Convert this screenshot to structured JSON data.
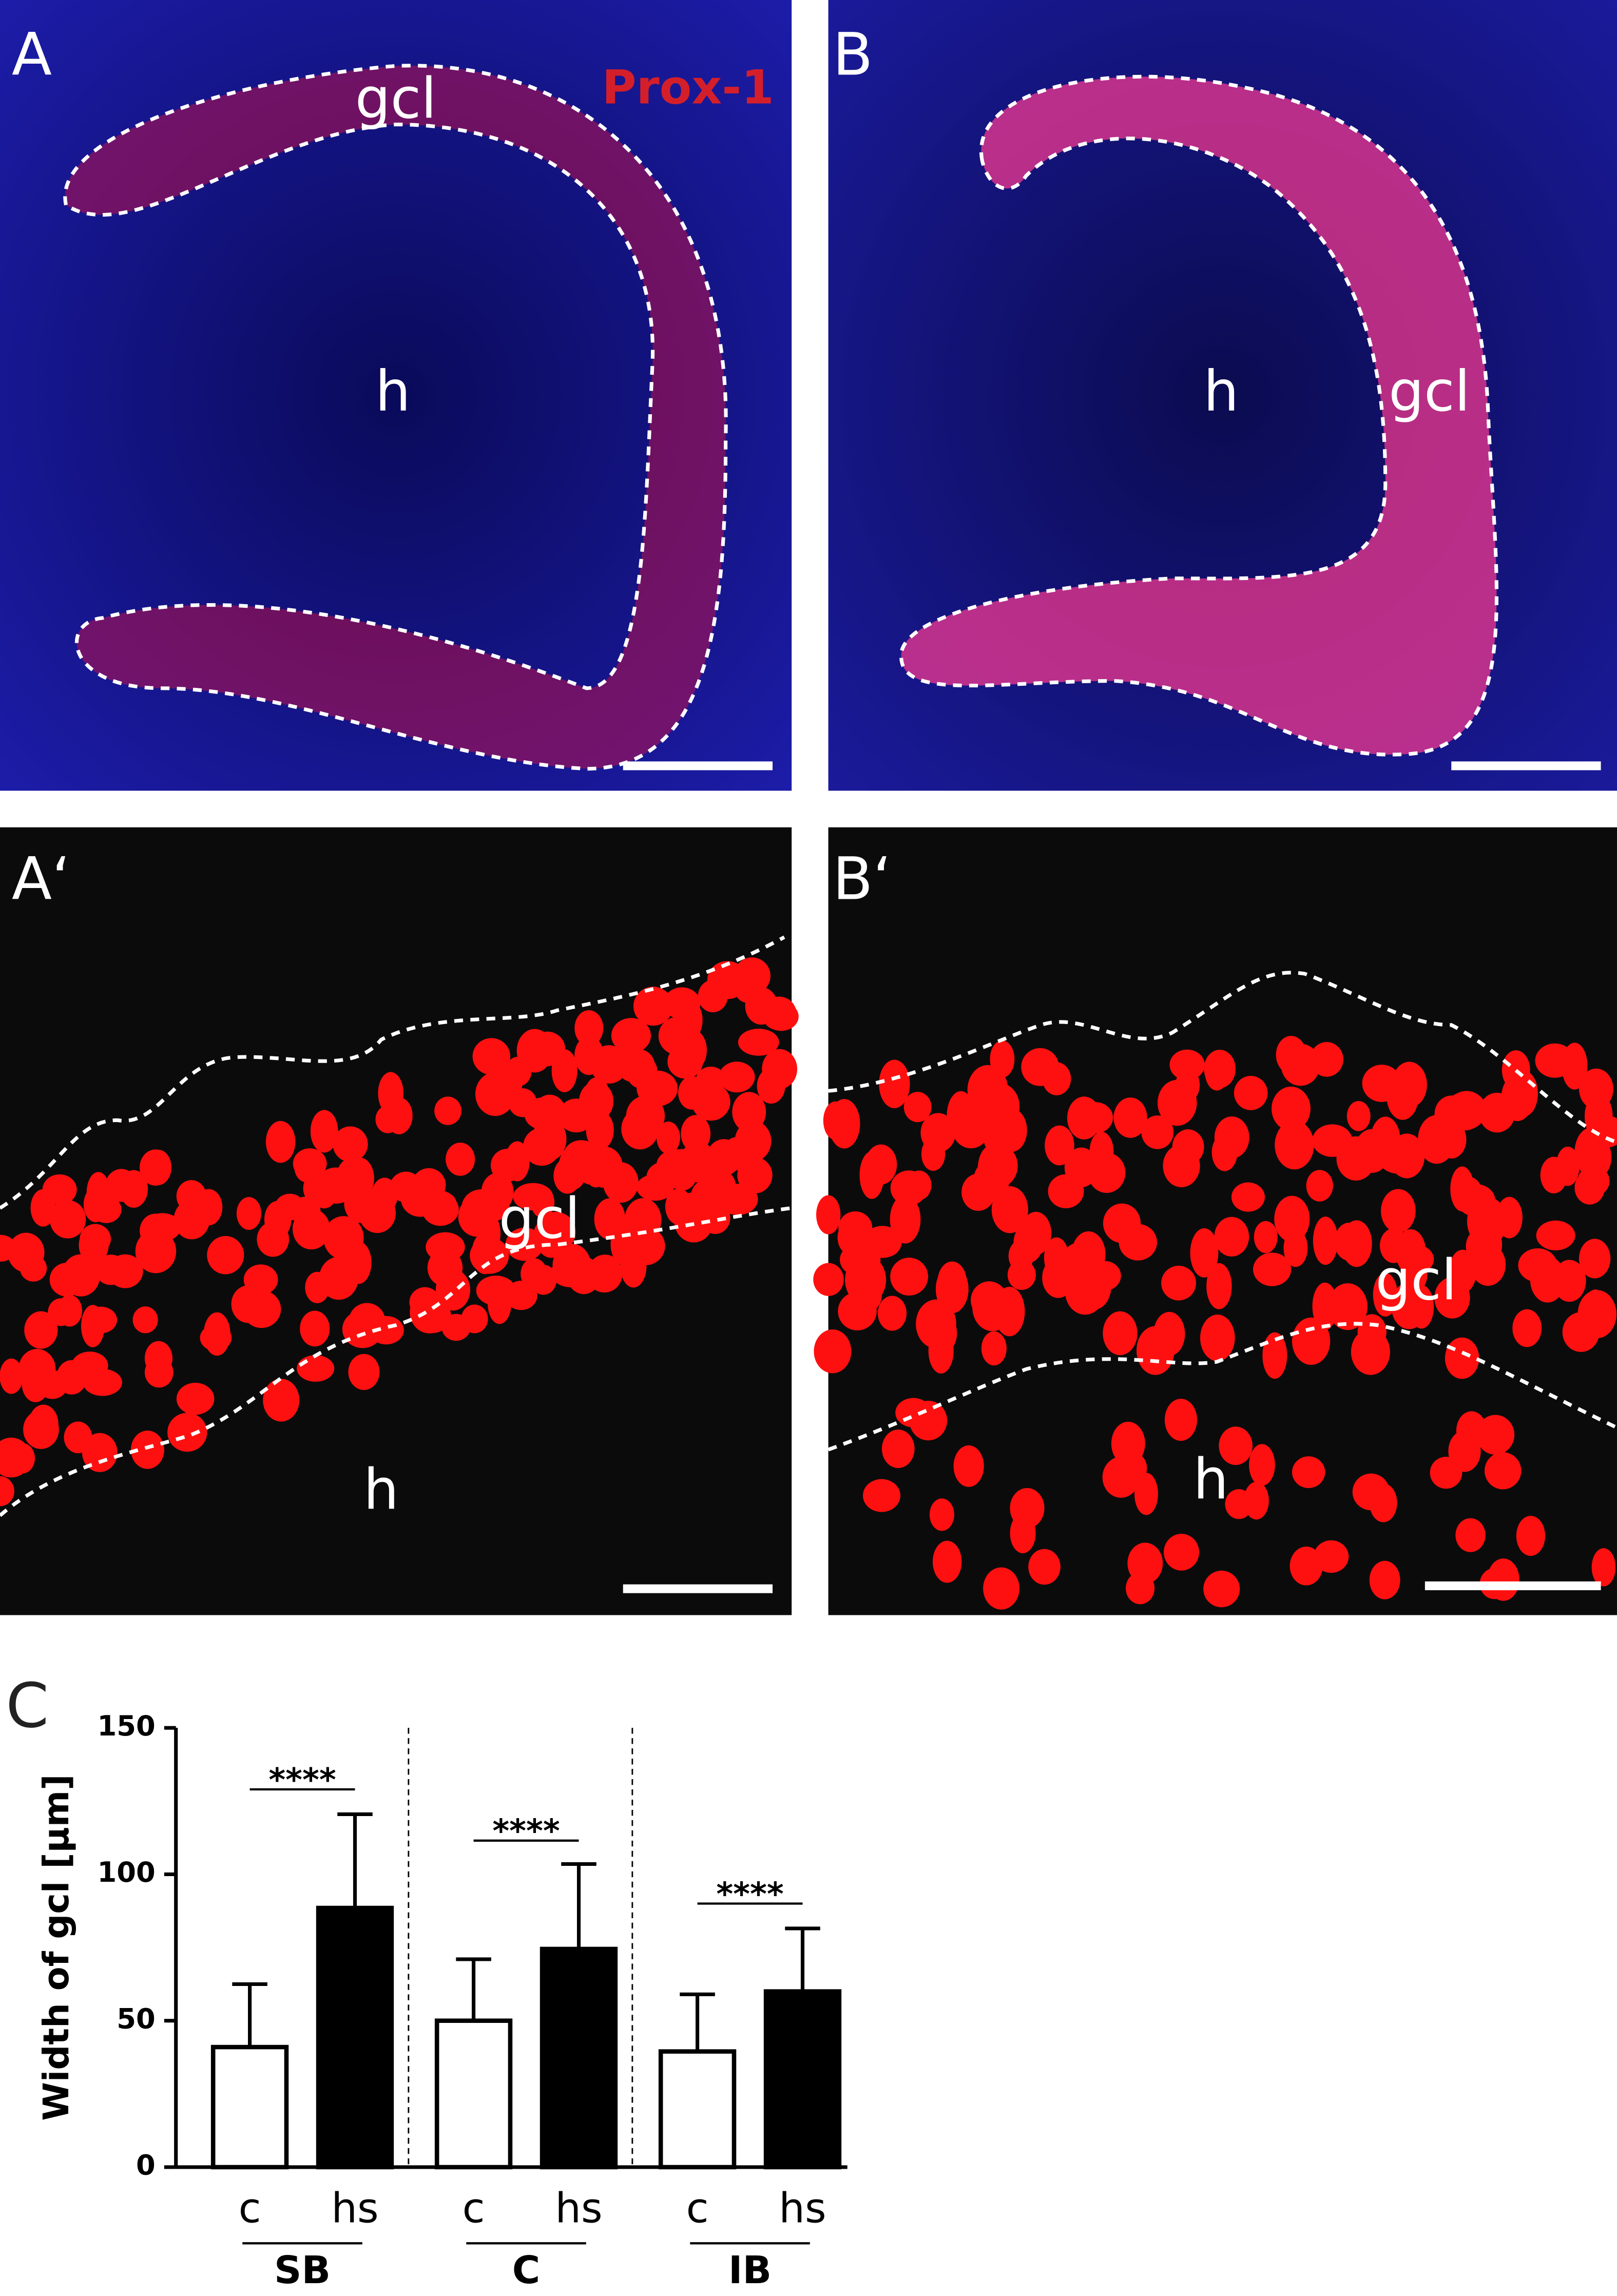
{
  "panels": [
    {
      "label": "A",
      "region_labels": [
        "gcl",
        "h"
      ],
      "stain": "Prox-1"
    },
    {
      "label": "B",
      "region_labels": [
        "h",
        "gcl"
      ]
    },
    {
      "label": "A‘",
      "region_labels": [
        "gcl",
        "h"
      ]
    },
    {
      "label": "B‘",
      "region_labels": [
        "gcl",
        "h"
      ]
    }
  ],
  "chart_data": {
    "type": "bar",
    "panel_label": "C",
    "y_label": "Width of gcl [µm]",
    "categories": [
      "SB",
      "C",
      "IB"
    ],
    "series": [
      {
        "name": "c",
        "color": "#ffffff",
        "values": [
          41,
          50,
          39.5
        ],
        "errors": [
          21.5,
          21,
          19.5
        ]
      },
      {
        "name": "hs",
        "color": "#000000",
        "values": [
          88.5,
          74.5,
          60
        ],
        "errors": [
          32,
          29,
          21.5
        ]
      }
    ],
    "significance": [
      {
        "label": "****",
        "level": 129
      },
      {
        "label": "****",
        "level": 111.5
      },
      {
        "label": "****",
        "level": 90
      }
    ],
    "ylim": [
      0,
      150
    ],
    "yticks": [
      0,
      50,
      100,
      150
    ],
    "grid": false
  }
}
